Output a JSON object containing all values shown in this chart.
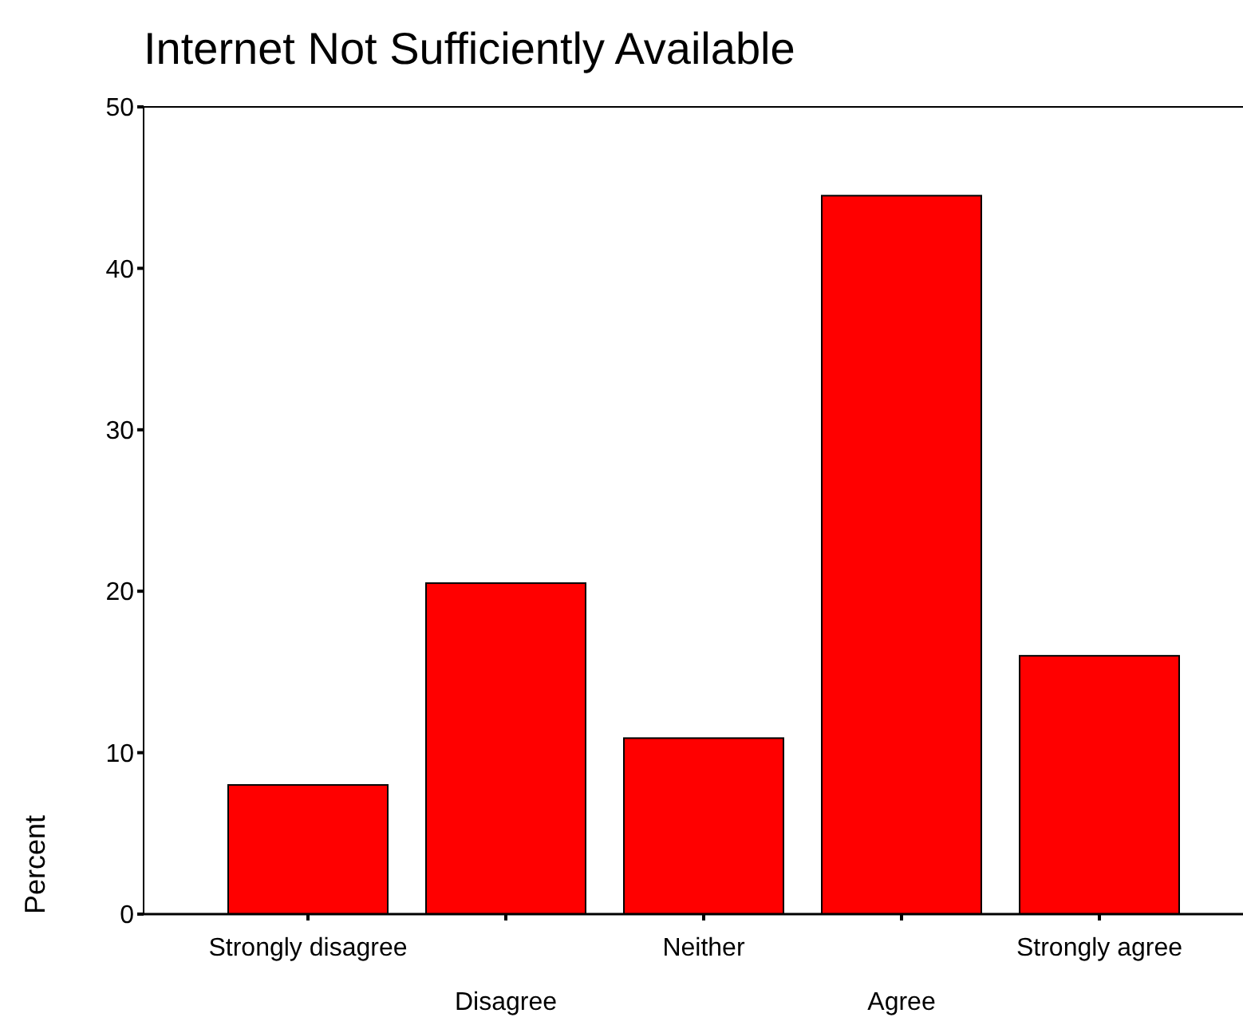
{
  "chart_data": {
    "type": "bar",
    "title": "Internet Not Sufficiently Available",
    "ylabel": "Percent",
    "categories": [
      "Strongly disagree",
      "Disagree",
      "Neither",
      "Agree",
      "Strongly agree"
    ],
    "values": [
      8.0,
      20.5,
      10.9,
      44.5,
      16.0
    ],
    "color": "#ff0000",
    "ylim": [
      0,
      50
    ],
    "yticks": [
      0,
      10,
      20,
      30,
      40,
      50
    ],
    "grid": false
  }
}
